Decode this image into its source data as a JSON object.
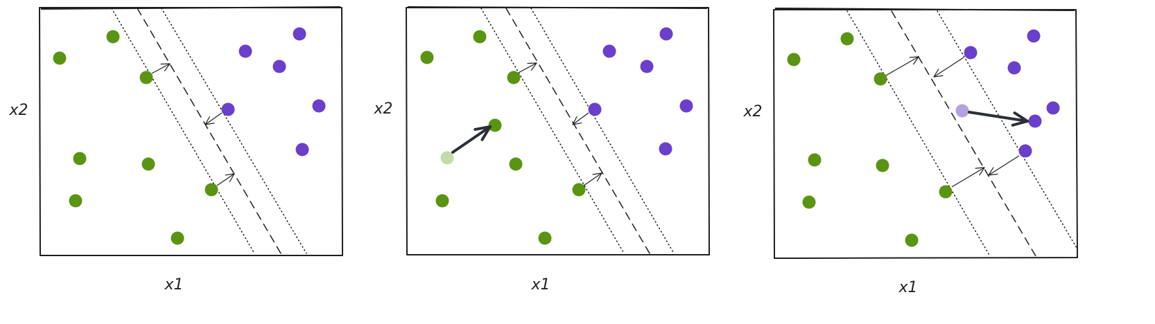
{
  "labels": {
    "x_axis": "x1",
    "y_axis": "x2"
  },
  "colors": {
    "green": "#5a9413",
    "purple": "#6a3fcc",
    "light_green": "#c3dca7",
    "light_purple": "#b4a2e0",
    "ink": "#1e1e1e",
    "arrow_dark": "#2b2f36"
  },
  "panels": [
    {
      "name": "panel-1",
      "description_state": "initial fit"
    },
    {
      "name": "panel-2",
      "description_state": "green point moved"
    },
    {
      "name": "panel-3",
      "description_state": "purple point moved"
    }
  ]
}
